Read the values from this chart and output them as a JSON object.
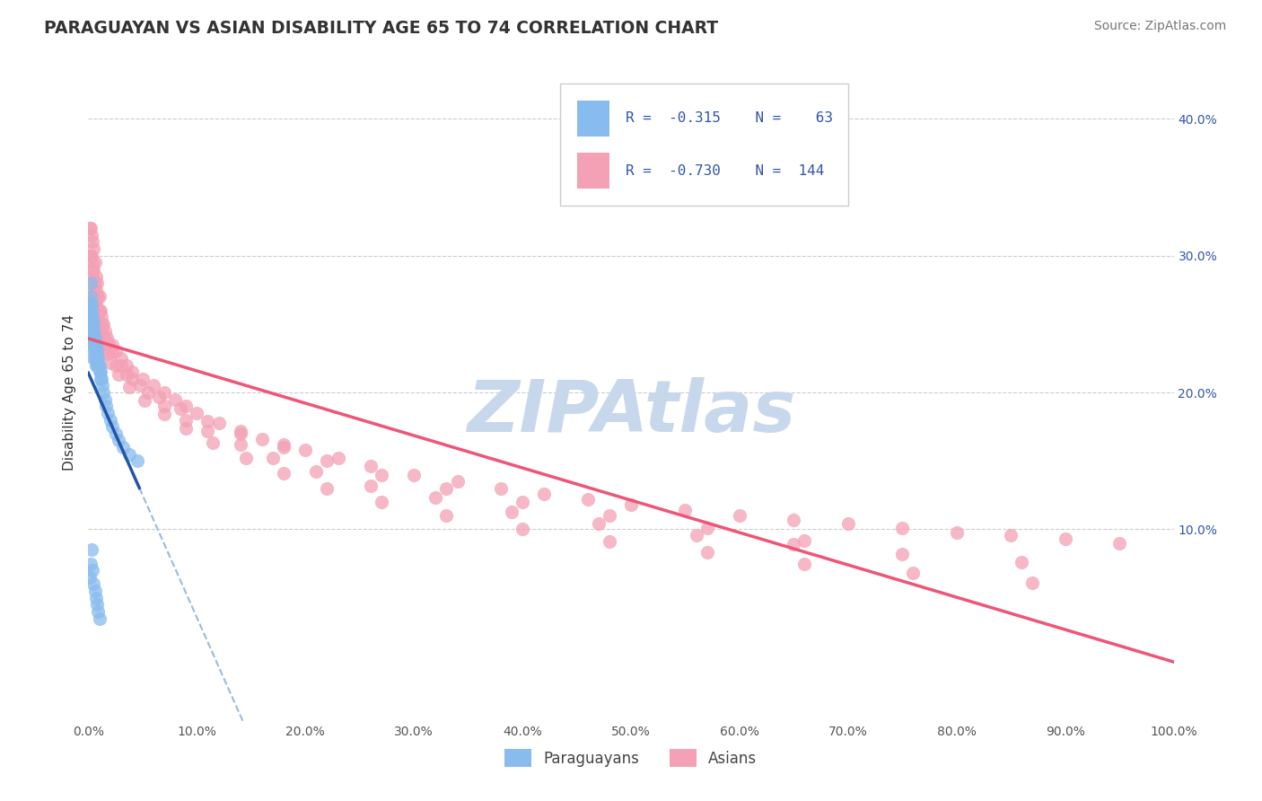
{
  "title": "PARAGUAYAN VS ASIAN DISABILITY AGE 65 TO 74 CORRELATION CHART",
  "source": "Source: ZipAtlas.com",
  "ylabel": "Disability Age 65 to 74",
  "xlim": [
    0.0,
    1.0
  ],
  "ylim": [
    -0.04,
    0.44
  ],
  "xticks": [
    0.0,
    0.1,
    0.2,
    0.3,
    0.4,
    0.5,
    0.6,
    0.7,
    0.8,
    0.9,
    1.0
  ],
  "xticklabels": [
    "0.0%",
    "10.0%",
    "20.0%",
    "30.0%",
    "40.0%",
    "50.0%",
    "60.0%",
    "70.0%",
    "80.0%",
    "90.0%",
    "100.0%"
  ],
  "yticks": [
    0.1,
    0.2,
    0.3,
    0.4
  ],
  "yticklabels": [
    "10.0%",
    "20.0%",
    "30.0%",
    "40.0%"
  ],
  "title_color": "#333333",
  "source_color": "#777777",
  "background_color": "#ffffff",
  "grid_color": "#cccccc",
  "paraguayan_color": "#88BBEE",
  "asian_color": "#F4A0B5",
  "paraguayan_line_color": "#2255AA",
  "paraguayan_dash_color": "#99BBDD",
  "asian_line_color": "#EE5577",
  "watermark_color": "#C8D8EC",
  "legend_text_color": "#3355AA",
  "par_x": [
    0.001,
    0.001,
    0.002,
    0.002,
    0.002,
    0.002,
    0.003,
    0.003,
    0.003,
    0.003,
    0.003,
    0.003,
    0.004,
    0.004,
    0.004,
    0.004,
    0.004,
    0.005,
    0.005,
    0.005,
    0.005,
    0.005,
    0.005,
    0.006,
    0.006,
    0.006,
    0.006,
    0.007,
    0.007,
    0.007,
    0.007,
    0.008,
    0.008,
    0.008,
    0.009,
    0.009,
    0.01,
    0.01,
    0.011,
    0.011,
    0.012,
    0.013,
    0.014,
    0.015,
    0.016,
    0.018,
    0.02,
    0.022,
    0.025,
    0.028,
    0.032,
    0.038,
    0.045,
    0.001,
    0.002,
    0.003,
    0.004,
    0.005,
    0.006,
    0.007,
    0.008,
    0.009,
    0.01
  ],
  "par_y": [
    0.255,
    0.265,
    0.28,
    0.27,
    0.26,
    0.25,
    0.265,
    0.26,
    0.255,
    0.25,
    0.245,
    0.24,
    0.255,
    0.25,
    0.245,
    0.24,
    0.235,
    0.25,
    0.245,
    0.24,
    0.235,
    0.23,
    0.225,
    0.24,
    0.235,
    0.23,
    0.225,
    0.235,
    0.23,
    0.225,
    0.22,
    0.23,
    0.225,
    0.22,
    0.225,
    0.22,
    0.22,
    0.215,
    0.215,
    0.21,
    0.21,
    0.205,
    0.2,
    0.195,
    0.19,
    0.185,
    0.18,
    0.175,
    0.17,
    0.165,
    0.16,
    0.155,
    0.15,
    0.065,
    0.075,
    0.085,
    0.07,
    0.06,
    0.055,
    0.05,
    0.045,
    0.04,
    0.035
  ],
  "asi_x": [
    0.001,
    0.002,
    0.002,
    0.003,
    0.003,
    0.003,
    0.004,
    0.004,
    0.004,
    0.005,
    0.005,
    0.005,
    0.005,
    0.006,
    0.006,
    0.006,
    0.007,
    0.007,
    0.007,
    0.008,
    0.008,
    0.008,
    0.009,
    0.009,
    0.01,
    0.01,
    0.01,
    0.011,
    0.012,
    0.013,
    0.014,
    0.015,
    0.017,
    0.019,
    0.022,
    0.025,
    0.03,
    0.035,
    0.04,
    0.05,
    0.06,
    0.07,
    0.08,
    0.09,
    0.1,
    0.12,
    0.14,
    0.16,
    0.18,
    0.2,
    0.23,
    0.26,
    0.3,
    0.34,
    0.38,
    0.42,
    0.46,
    0.5,
    0.55,
    0.6,
    0.65,
    0.7,
    0.75,
    0.8,
    0.85,
    0.9,
    0.95,
    0.002,
    0.004,
    0.006,
    0.008,
    0.012,
    0.016,
    0.022,
    0.03,
    0.04,
    0.055,
    0.07,
    0.09,
    0.11,
    0.14,
    0.17,
    0.21,
    0.26,
    0.32,
    0.39,
    0.47,
    0.56,
    0.65,
    0.75,
    0.86,
    0.003,
    0.005,
    0.008,
    0.012,
    0.018,
    0.025,
    0.035,
    0.048,
    0.065,
    0.085,
    0.11,
    0.14,
    0.18,
    0.22,
    0.27,
    0.33,
    0.4,
    0.48,
    0.57,
    0.66,
    0.001,
    0.003,
    0.005,
    0.007,
    0.01,
    0.014,
    0.02,
    0.028,
    0.038,
    0.052,
    0.07,
    0.09,
    0.115,
    0.145,
    0.18,
    0.22,
    0.27,
    0.33,
    0.4,
    0.48,
    0.57,
    0.66,
    0.76,
    0.87
  ],
  "asi_y": [
    0.32,
    0.32,
    0.3,
    0.315,
    0.3,
    0.29,
    0.31,
    0.295,
    0.285,
    0.305,
    0.29,
    0.275,
    0.265,
    0.295,
    0.28,
    0.27,
    0.285,
    0.275,
    0.265,
    0.28,
    0.27,
    0.26,
    0.27,
    0.26,
    0.27,
    0.26,
    0.25,
    0.26,
    0.255,
    0.25,
    0.25,
    0.245,
    0.24,
    0.235,
    0.235,
    0.23,
    0.225,
    0.22,
    0.215,
    0.21,
    0.205,
    0.2,
    0.195,
    0.19,
    0.185,
    0.178,
    0.172,
    0.166,
    0.162,
    0.158,
    0.152,
    0.146,
    0.14,
    0.135,
    0.13,
    0.126,
    0.122,
    0.118,
    0.114,
    0.11,
    0.107,
    0.104,
    0.101,
    0.098,
    0.096,
    0.093,
    0.09,
    0.28,
    0.27,
    0.265,
    0.255,
    0.245,
    0.238,
    0.23,
    0.22,
    0.21,
    0.2,
    0.19,
    0.18,
    0.172,
    0.162,
    0.152,
    0.142,
    0.132,
    0.123,
    0.113,
    0.104,
    0.096,
    0.089,
    0.082,
    0.076,
    0.25,
    0.245,
    0.24,
    0.235,
    0.228,
    0.22,
    0.213,
    0.205,
    0.197,
    0.188,
    0.179,
    0.17,
    0.16,
    0.15,
    0.14,
    0.13,
    0.12,
    0.11,
    0.101,
    0.092,
    0.26,
    0.255,
    0.25,
    0.245,
    0.238,
    0.23,
    0.222,
    0.213,
    0.204,
    0.194,
    0.184,
    0.174,
    0.163,
    0.152,
    0.141,
    0.13,
    0.12,
    0.11,
    0.1,
    0.091,
    0.083,
    0.075,
    0.068,
    0.061
  ]
}
